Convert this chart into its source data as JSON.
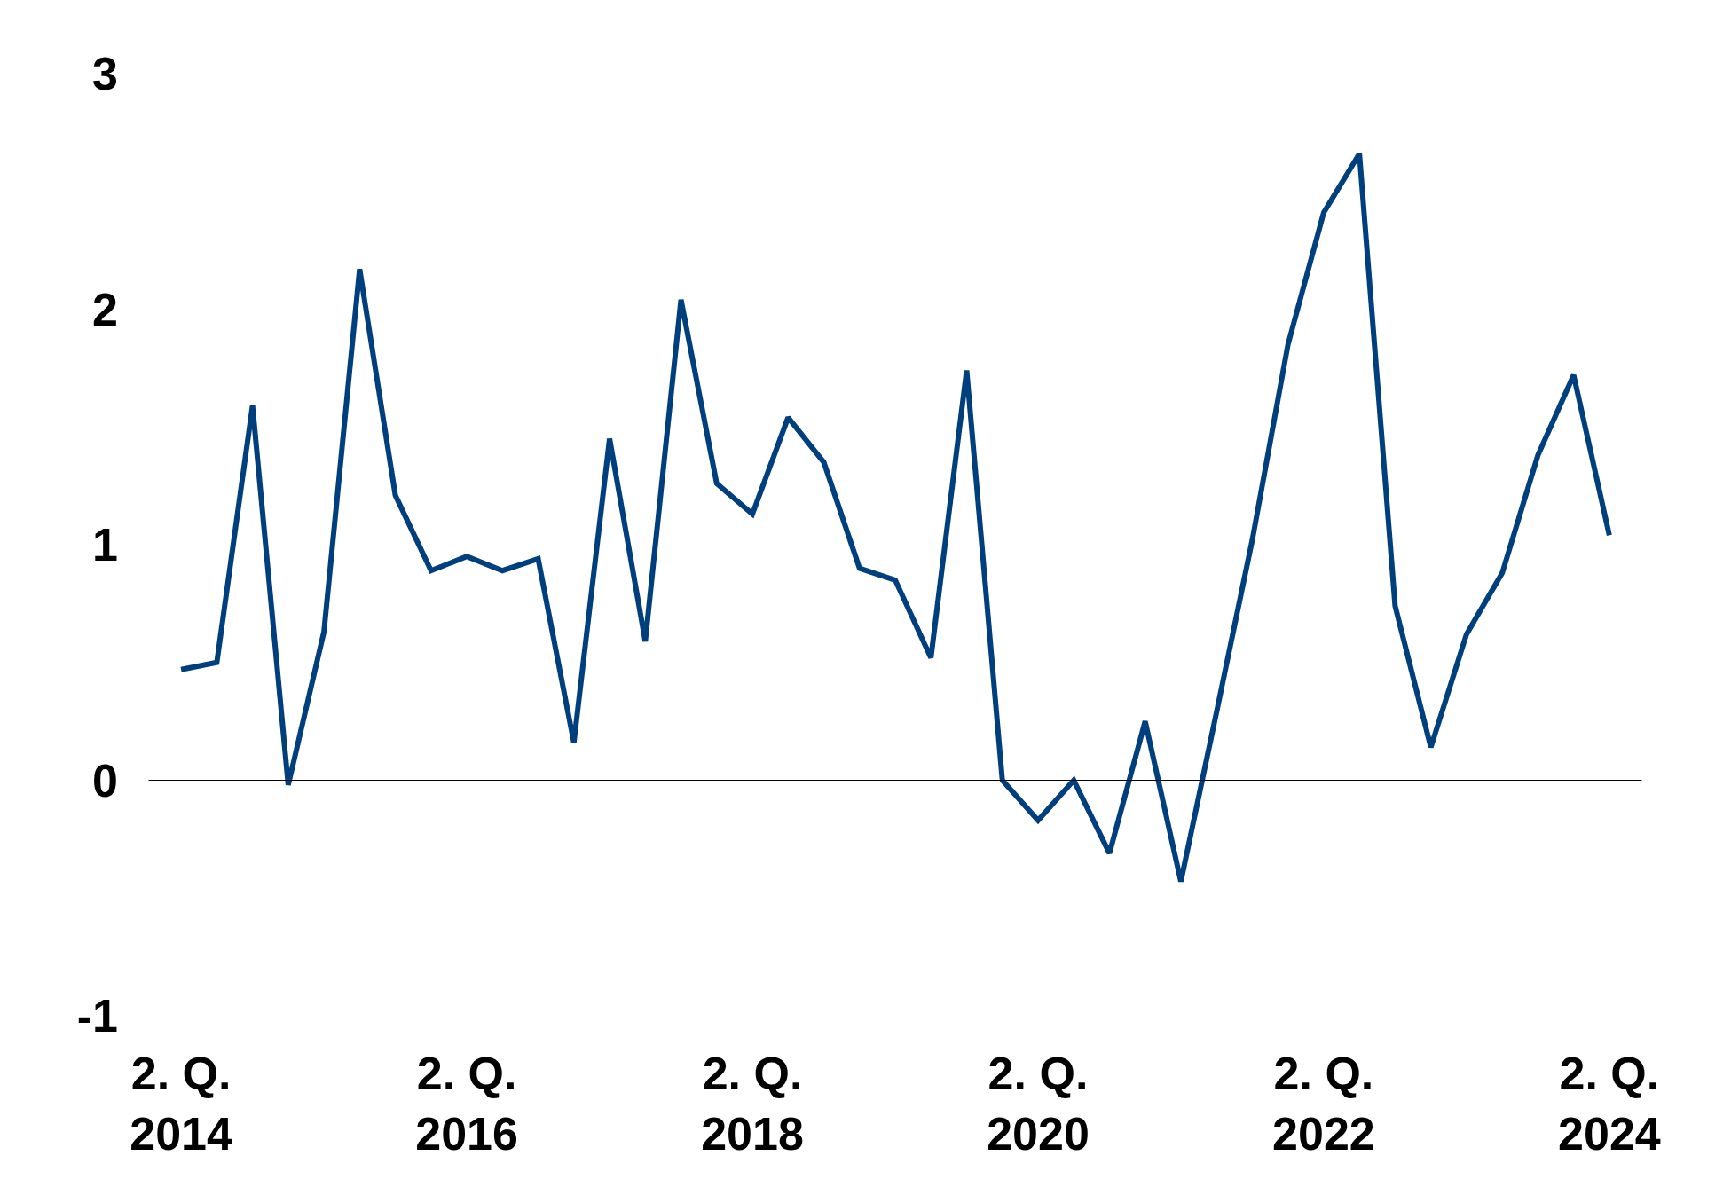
{
  "chart_data": {
    "type": "line",
    "categories": [
      "2. Q.\n2014",
      null,
      null,
      null,
      null,
      null,
      null,
      null,
      "2. Q.\n2016",
      null,
      null,
      null,
      null,
      null,
      null,
      null,
      "2. Q.\n2018",
      null,
      null,
      null,
      null,
      null,
      null,
      null,
      "2. Q.\n2020",
      null,
      null,
      null,
      null,
      null,
      null,
      null,
      "2. Q.\n2022",
      null,
      null,
      null,
      null,
      null,
      null,
      null,
      "2. Q.\n2024"
    ],
    "series": [
      {
        "color": "#003f7d",
        "values": [
          0.47,
          0.5,
          1.59,
          -0.02,
          0.63,
          2.17,
          1.21,
          0.89,
          0.95,
          0.89,
          0.94,
          0.16,
          1.45,
          0.59,
          2.04,
          1.26,
          1.13,
          1.54,
          1.35,
          0.9,
          0.85,
          0.52,
          1.74,
          0,
          -0.17,
          0,
          -0.31,
          0.25,
          -0.43,
          0.29,
          1.02,
          1.85,
          2.41,
          2.66,
          0.74,
          0.14,
          0.62,
          0.88,
          1.38,
          1.72,
          1.04
        ]
      }
    ],
    "ylim": [
      -1,
      3
    ],
    "yticks": [
      -1,
      0,
      1,
      2,
      3
    ],
    "grid": false,
    "marker": "none",
    "line_style": "solid",
    "ref_lines": [
      {
        "axis": "y",
        "value": 0,
        "color": "#000000"
      }
    ]
  }
}
